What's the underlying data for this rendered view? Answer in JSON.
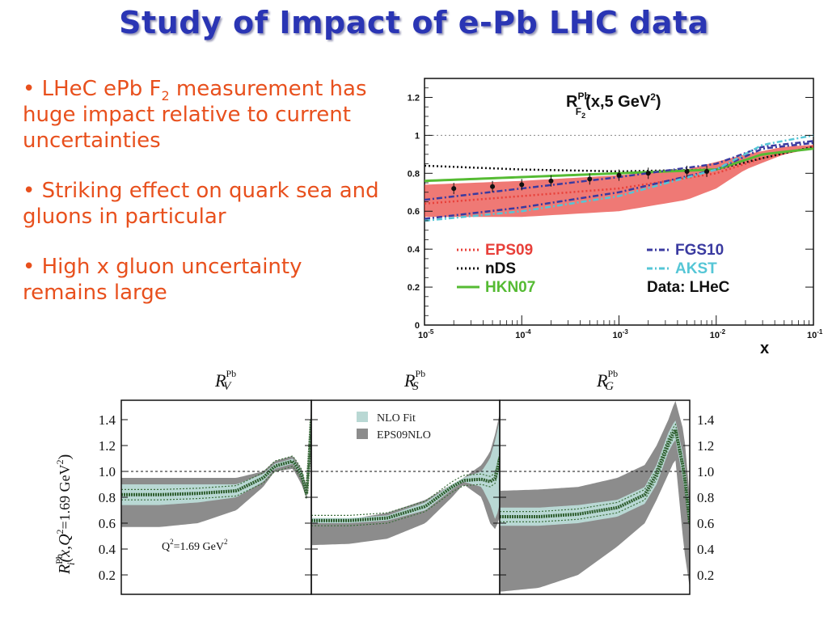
{
  "slide": {
    "title": "Study of Impact of e-Pb LHC data",
    "bullets": [
      {
        "pre": "• LHeC ePb F",
        "sub": "2",
        "post": " measurement has huge impact relative to current uncertainties"
      },
      {
        "pre": "• Striking effect on quark sea and gluons in particular",
        "sub": "",
        "post": ""
      },
      {
        "pre": "• High x gluon uncertainty remains large",
        "sub": "",
        "post": ""
      }
    ]
  },
  "chart_data": [
    {
      "type": "line",
      "title_main": "R",
      "title_sup": "Pb",
      "title_sub": "F",
      "title_subsub": "2",
      "title_rest": "(x,5 GeV",
      "title_sup2": "2",
      "title_close": ")",
      "xlabel": "x",
      "x_scale": "log",
      "xlim": [
        1e-05,
        0.1
      ],
      "ylim": [
        0,
        1.3
      ],
      "xticks": [
        {
          "v": 1e-05,
          "base": "10",
          "exp": "-5"
        },
        {
          "v": 0.0001,
          "base": "10",
          "exp": "-4"
        },
        {
          "v": 0.001,
          "base": "10",
          "exp": "-3"
        },
        {
          "v": 0.01,
          "base": "10",
          "exp": "-2"
        },
        {
          "v": 0.1,
          "base": "10",
          "exp": "-1"
        }
      ],
      "yticks": [
        {
          "v": 0,
          "label": "0"
        },
        {
          "v": 0.2,
          "label": "0.2"
        },
        {
          "v": 0.4,
          "label": "0.4"
        },
        {
          "v": 0.6,
          "label": "0.6"
        },
        {
          "v": 0.8,
          "label": "0.8"
        },
        {
          "v": 1.0,
          "label": "1"
        },
        {
          "v": 1.2,
          "label": "1.2"
        }
      ],
      "reference_line": 1.0,
      "bands": [
        {
          "name": "EPS09",
          "color": "#e8403a",
          "x": [
            1e-05,
            0.0001,
            0.001,
            0.005,
            0.01,
            0.02,
            0.05,
            0.1
          ],
          "lower": [
            0.57,
            0.57,
            0.6,
            0.66,
            0.72,
            0.82,
            0.9,
            0.93
          ],
          "upper": [
            0.74,
            0.76,
            0.79,
            0.82,
            0.86,
            0.9,
            0.94,
            0.95
          ]
        }
      ],
      "series": [
        {
          "name": "EPS09",
          "color": "#e8403a",
          "style": "dotted",
          "x": [
            1e-05,
            0.0001,
            0.001,
            0.01,
            0.03,
            0.1
          ],
          "y": [
            0.64,
            0.68,
            0.72,
            0.8,
            0.88,
            0.94
          ]
        },
        {
          "name": "nDS",
          "color": "#111111",
          "style": "dotted",
          "x": [
            1e-05,
            0.0001,
            0.001,
            0.01,
            0.03,
            0.1
          ],
          "y": [
            0.84,
            0.82,
            0.81,
            0.82,
            0.88,
            0.94
          ]
        },
        {
          "name": "HKN07",
          "color": "#55bb33",
          "style": "solid",
          "x": [
            1e-05,
            0.0001,
            0.001,
            0.01,
            0.03,
            0.1
          ],
          "y": [
            0.76,
            0.78,
            0.8,
            0.82,
            0.9,
            0.93
          ]
        },
        {
          "name": "FGS10",
          "color": "#3a3aa0",
          "style": "dashdot",
          "x": [
            1e-05,
            0.0001,
            0.001,
            0.01,
            0.03,
            0.1
          ],
          "y": [
            0.56,
            0.62,
            0.7,
            0.82,
            0.93,
            0.96
          ]
        },
        {
          "name": "FGS10",
          "color": "#3a3aa0",
          "style": "dashdot",
          "x": [
            1e-05,
            0.0001,
            0.001,
            0.01,
            0.03,
            0.1
          ],
          "y": [
            0.66,
            0.72,
            0.78,
            0.85,
            0.94,
            0.97
          ]
        },
        {
          "name": "AKST",
          "color": "#55c6d6",
          "style": "dashdot",
          "x": [
            1e-05,
            0.0001,
            0.001,
            0.01,
            0.03,
            0.1
          ],
          "y": [
            0.55,
            0.6,
            0.68,
            0.82,
            0.95,
            1.0
          ]
        }
      ],
      "points": {
        "name": "Data: LHeC",
        "x": [
          2e-05,
          5e-05,
          0.0001,
          0.0002,
          0.0005,
          0.001,
          0.002,
          0.005,
          0.008
        ],
        "y": [
          0.72,
          0.73,
          0.74,
          0.76,
          0.77,
          0.79,
          0.8,
          0.81,
          0.81
        ]
      },
      "legend": [
        {
          "label": "EPS09",
          "color": "#e8403a",
          "text_color": "#e8403a",
          "style": "dotted"
        },
        {
          "label": "nDS",
          "color": "#111111",
          "text_color": "#111111",
          "style": "dotted"
        },
        {
          "label": "HKN07",
          "color": "#55bb33",
          "text_color": "#55bb33",
          "style": "solid"
        },
        {
          "label": "FGS10",
          "color": "#3a3aa0",
          "text_color": "#3a3aa0",
          "style": "dashdot"
        },
        {
          "label": "AKST",
          "color": "#55c6d6",
          "text_color": "#55c6d6",
          "style": "dashdot"
        },
        {
          "label": "Data: LHeC",
          "color": "#111111",
          "text_color": "#111111",
          "style": "none"
        }
      ]
    },
    {
      "type": "area",
      "ylabel": "R",
      "ylabel_sup": "Pb",
      "ylabel_sub": "i",
      "ylabel_rest": "(x,Q",
      "ylabel_sup2": "2",
      "ylabel_rest2": "=1.69 GeV",
      "ylabel_sup3": "2",
      "ylabel_close": ")",
      "ylim": [
        0.05,
        1.55
      ],
      "x_scale": "log",
      "xlim": [
        1e-05,
        1
      ],
      "yticks": [
        "0.2",
        "0.4",
        "0.6",
        "0.8",
        "1.0",
        "1.2",
        "1.4"
      ],
      "ytick_values": [
        0.2,
        0.4,
        0.6,
        0.8,
        1.0,
        1.2,
        1.4
      ],
      "reference_line": 1.0,
      "annotation": "Q",
      "annotation_sup": "2",
      "annotation_rest": "=1.69 GeV",
      "annotation_sup2": "2",
      "legend": [
        {
          "label": "NLO Fit",
          "color": "#b9d8d4"
        },
        {
          "label": "EPS09NLO",
          "color": "#8c8c8c"
        }
      ],
      "panels": [
        {
          "title_main": "R",
          "title_sup": "Pb",
          "title_sub": "V",
          "x": [
            1e-05,
            0.0001,
            0.001,
            0.01,
            0.05,
            0.1,
            0.3,
            0.5,
            0.7,
            0.9
          ],
          "eps_lo": [
            0.57,
            0.57,
            0.6,
            0.7,
            0.88,
            1.0,
            1.02,
            0.9,
            0.78,
            1.2
          ],
          "eps_hi": [
            0.95,
            0.95,
            0.95,
            0.95,
            1.0,
            1.08,
            1.12,
            1.02,
            0.84,
            1.55
          ],
          "fit_lo": [
            0.74,
            0.74,
            0.76,
            0.8,
            0.92,
            1.02,
            1.06,
            0.96,
            0.8,
            1.3
          ],
          "fit_hi": [
            0.9,
            0.9,
            0.9,
            0.9,
            0.98,
            1.06,
            1.1,
            1.0,
            0.82,
            1.5
          ],
          "central": [
            0.82,
            0.82,
            0.83,
            0.85,
            0.95,
            1.04,
            1.08,
            0.98,
            0.81,
            1.4
          ]
        },
        {
          "title_main": "R",
          "title_sup": "Pb",
          "title_sub": "S",
          "x": [
            1e-05,
            0.0001,
            0.001,
            0.01,
            0.05,
            0.1,
            0.3,
            0.5,
            0.7,
            0.9
          ],
          "eps_lo": [
            0.43,
            0.44,
            0.48,
            0.6,
            0.8,
            0.9,
            0.8,
            0.6,
            0.55,
            0.65
          ],
          "eps_hi": [
            0.62,
            0.63,
            0.68,
            0.78,
            0.9,
            0.95,
            1.05,
            1.15,
            1.3,
            1.45
          ],
          "fit_lo": [
            0.6,
            0.6,
            0.62,
            0.7,
            0.86,
            0.92,
            0.88,
            0.75,
            0.62,
            0.75
          ],
          "fit_hi": [
            0.64,
            0.64,
            0.66,
            0.76,
            0.9,
            0.95,
            1.0,
            1.1,
            1.25,
            1.4
          ],
          "central": [
            0.62,
            0.62,
            0.64,
            0.73,
            0.88,
            0.93,
            0.94,
            0.92,
            0.95,
            1.1
          ]
        },
        {
          "title_main": "R",
          "title_sup": "Pb",
          "title_sub": "G",
          "x": [
            1e-05,
            0.0001,
            0.001,
            0.01,
            0.05,
            0.1,
            0.2,
            0.3,
            0.5,
            0.7
          ],
          "eps_lo": [
            0.07,
            0.1,
            0.2,
            0.42,
            0.6,
            0.78,
            0.98,
            1.1,
            0.4,
            0.1
          ],
          "eps_hi": [
            0.85,
            0.86,
            0.88,
            0.95,
            1.05,
            1.2,
            1.4,
            1.55,
            1.3,
            0.8
          ],
          "fit_lo": [
            0.58,
            0.58,
            0.6,
            0.65,
            0.75,
            0.9,
            1.15,
            1.25,
            0.9,
            0.55
          ],
          "fit_hi": [
            0.72,
            0.72,
            0.74,
            0.78,
            0.88,
            1.05,
            1.3,
            1.4,
            1.1,
            0.7
          ],
          "central": [
            0.65,
            0.65,
            0.67,
            0.72,
            0.82,
            0.98,
            1.22,
            1.33,
            1.0,
            0.6
          ]
        }
      ]
    }
  ]
}
